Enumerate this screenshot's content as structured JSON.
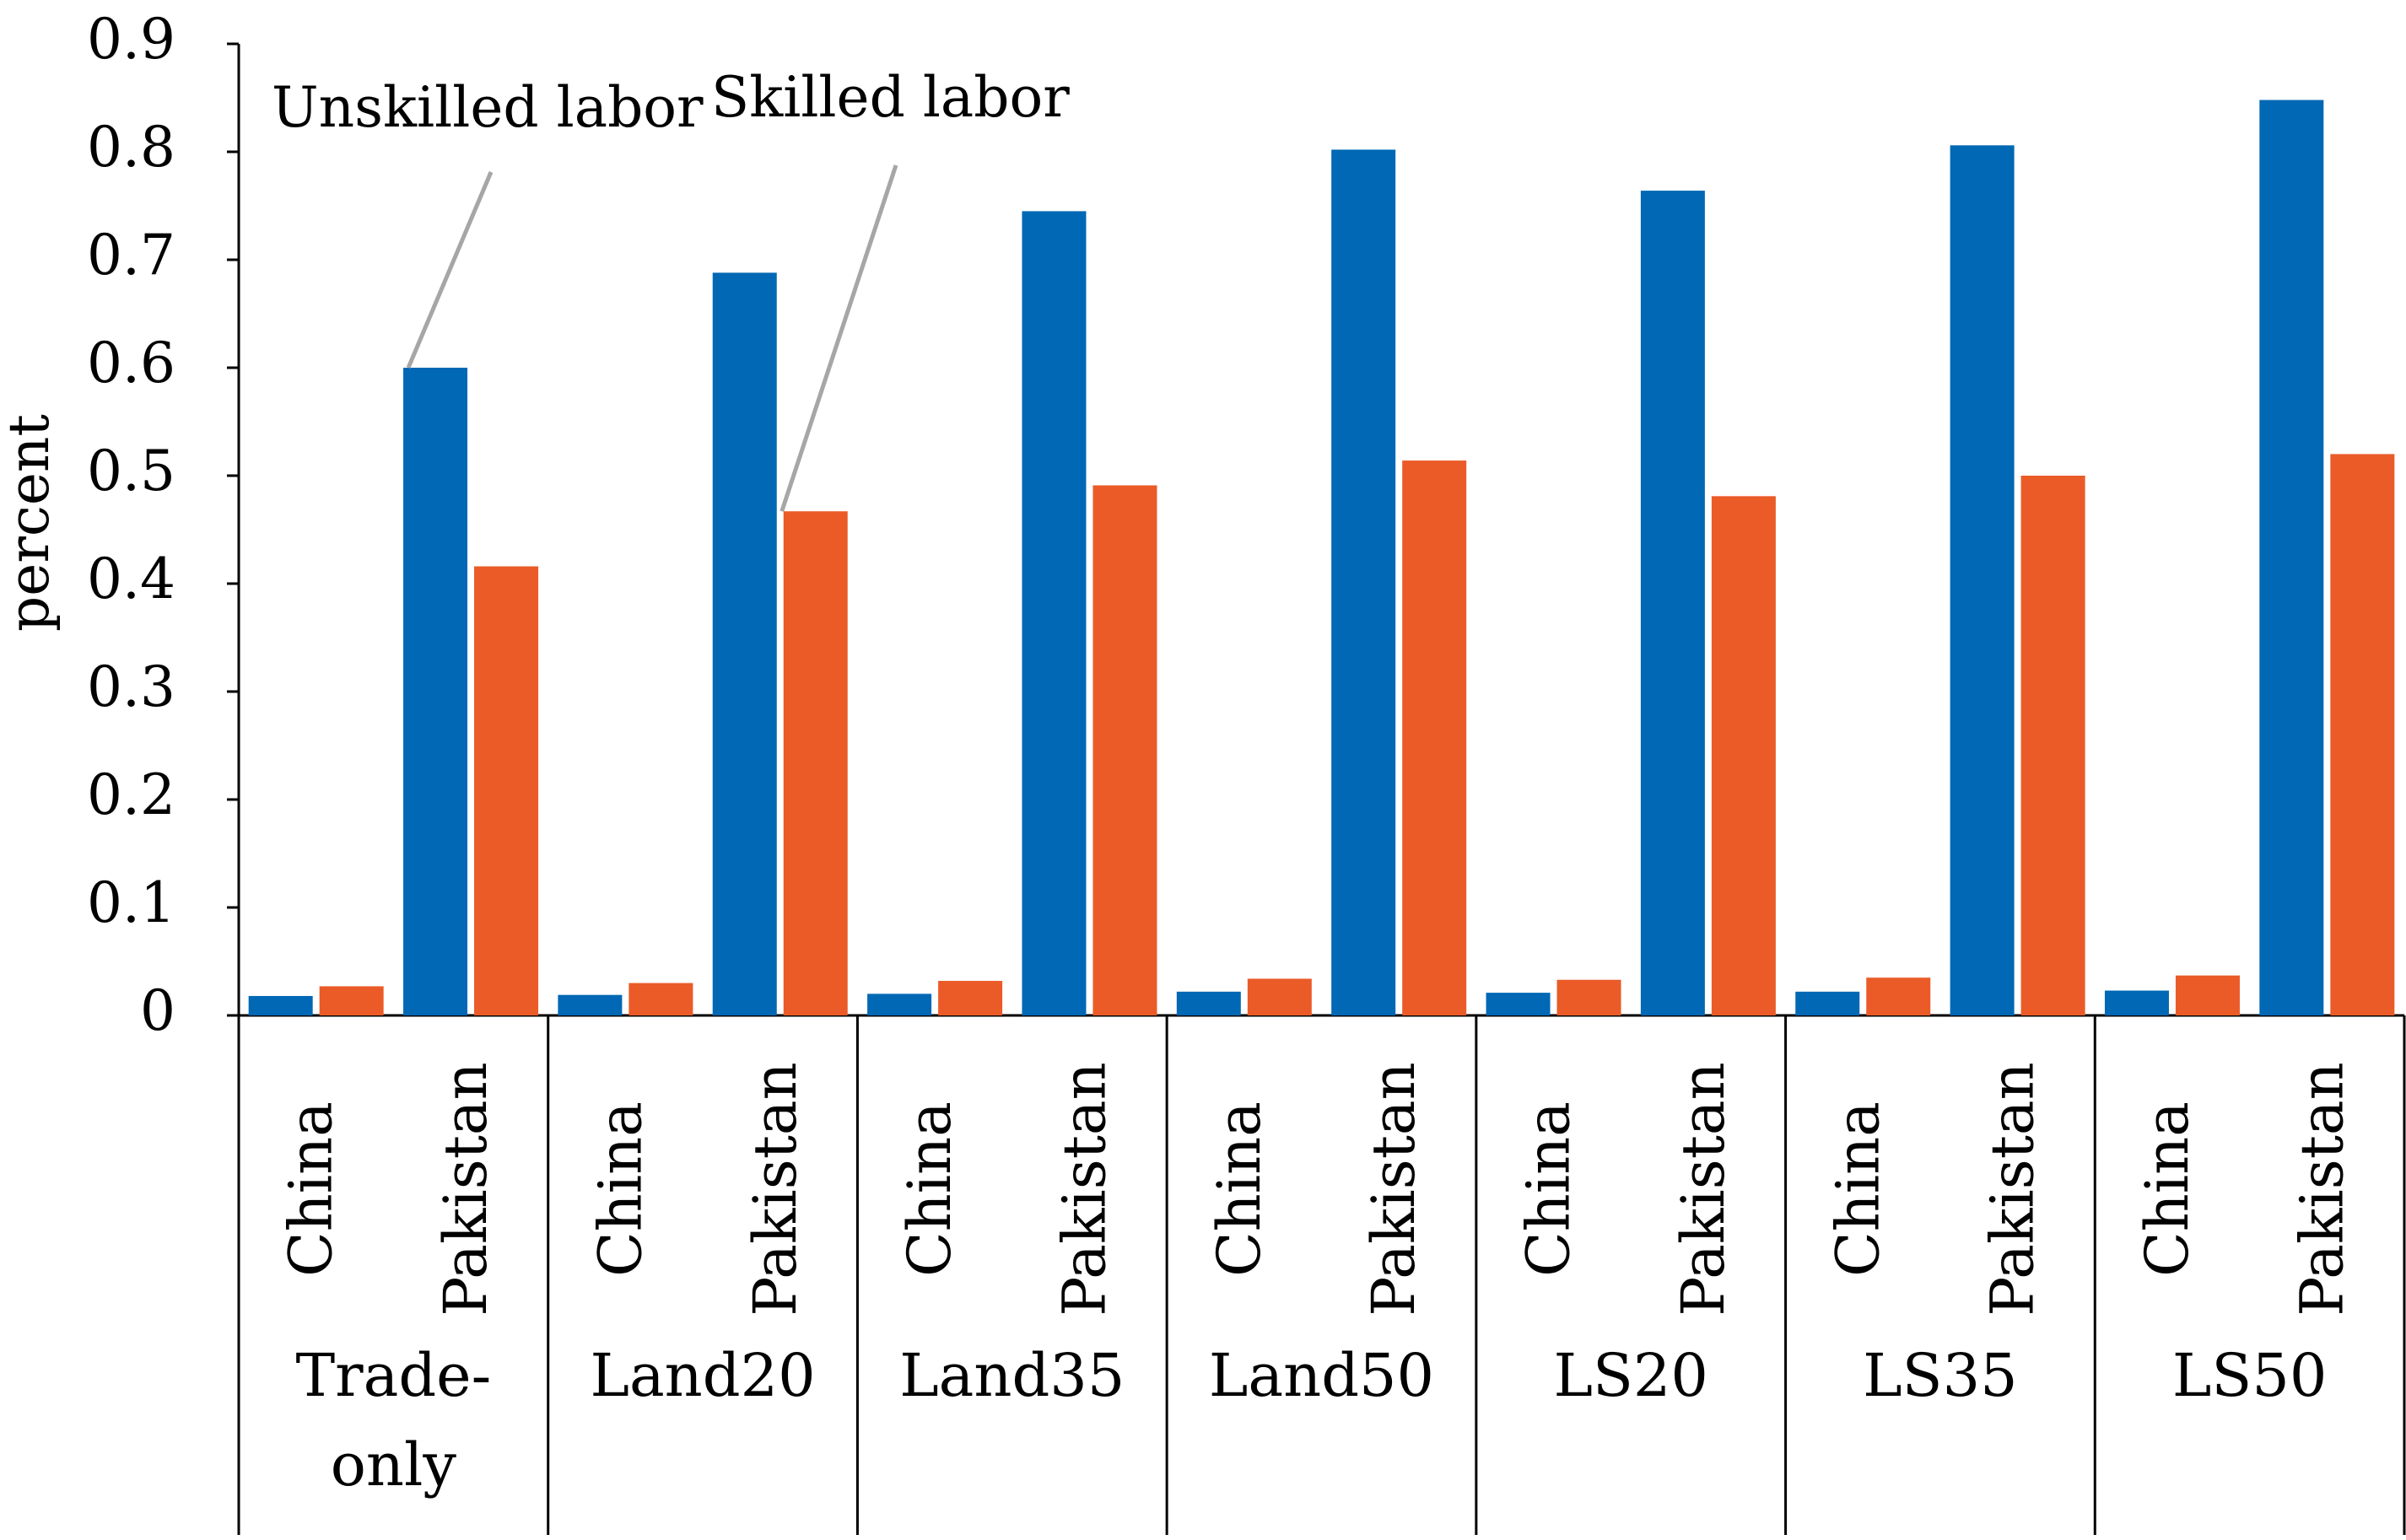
{
  "chart_data": {
    "type": "bar",
    "title": "",
    "xlabel": "",
    "ylabel": "percent",
    "ylim": [
      0,
      0.9
    ],
    "yticks": [
      "0",
      "0.1",
      "0.2",
      "0.3",
      "0.4",
      "0.5",
      "0.6",
      "0.7",
      "0.8",
      "0.9"
    ],
    "groups": [
      {
        "label": "Trade-\nonly",
        "label_lines": [
          "Trade-",
          "only"
        ],
        "countries": [
          {
            "name": "China",
            "unskilled": 0.018,
            "skilled": 0.027
          },
          {
            "name": "Pakistan",
            "unskilled": 0.6,
            "skilled": 0.416
          }
        ]
      },
      {
        "label": "Land20",
        "label_lines": [
          "Land20"
        ],
        "countries": [
          {
            "name": "China",
            "unskilled": 0.019,
            "skilled": 0.03
          },
          {
            "name": "Pakistan",
            "unskilled": 0.688,
            "skilled": 0.467
          }
        ]
      },
      {
        "label": "Land35",
        "label_lines": [
          "Land35"
        ],
        "countries": [
          {
            "name": "China",
            "unskilled": 0.02,
            "skilled": 0.032
          },
          {
            "name": "Pakistan",
            "unskilled": 0.745,
            "skilled": 0.491
          }
        ]
      },
      {
        "label": "Land50",
        "label_lines": [
          "Land50"
        ],
        "countries": [
          {
            "name": "China",
            "unskilled": 0.022,
            "skilled": 0.034
          },
          {
            "name": "Pakistan",
            "unskilled": 0.802,
            "skilled": 0.514
          }
        ]
      },
      {
        "label": "LS20",
        "label_lines": [
          "LS20"
        ],
        "countries": [
          {
            "name": "China",
            "unskilled": 0.021,
            "skilled": 0.033
          },
          {
            "name": "Pakistan",
            "unskilled": 0.764,
            "skilled": 0.481
          }
        ]
      },
      {
        "label": "LS35",
        "label_lines": [
          "LS35"
        ],
        "countries": [
          {
            "name": "China",
            "unskilled": 0.022,
            "skilled": 0.035
          },
          {
            "name": "Pakistan",
            "unskilled": 0.806,
            "skilled": 0.5
          }
        ]
      },
      {
        "label": "LS50",
        "label_lines": [
          "LS50"
        ],
        "countries": [
          {
            "name": "China",
            "unskilled": 0.023,
            "skilled": 0.037
          },
          {
            "name": "Pakistan",
            "unskilled": 0.848,
            "skilled": 0.52
          }
        ]
      }
    ],
    "series": [
      {
        "name": "Unskilled labor",
        "color": "#0068B4"
      },
      {
        "name": "Skilled labor",
        "color": "#EA5B28"
      }
    ],
    "annotations": [
      {
        "text": "Unskilled labor",
        "series": "Unskilled labor",
        "group": 0,
        "country": 1
      },
      {
        "text": "Skilled labor",
        "series": "Skilled labor",
        "group": 1,
        "country": 1
      }
    ],
    "grid": false,
    "legend": "none"
  },
  "colors": {
    "unskilled": "#0068B4",
    "skilled": "#EA5B28",
    "axis": "#000000",
    "leader": "#A6A6A6"
  }
}
